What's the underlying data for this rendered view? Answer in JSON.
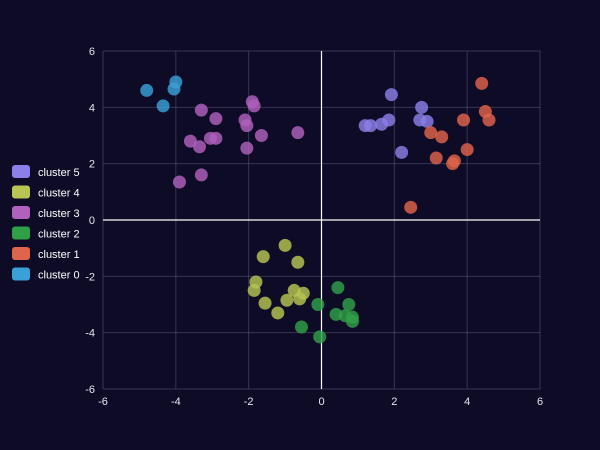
{
  "chart_data": {
    "type": "scatter",
    "title": "",
    "xlabel": "",
    "ylabel": "",
    "xlim": [
      -6,
      6
    ],
    "ylim": [
      -6,
      6
    ],
    "xticks": [
      -6,
      -4,
      -2,
      0,
      2,
      4,
      6
    ],
    "yticks": [
      -6,
      -4,
      -2,
      0,
      2,
      4,
      6
    ],
    "grid": true,
    "legend_position": "left",
    "colors": {
      "background": "#0d0b26",
      "grid": "#5a5a78",
      "axis": "#ffffff"
    },
    "series": [
      {
        "name": "cluster 5",
        "color": "#8b7fe8",
        "points": [
          [
            1.2,
            3.35
          ],
          [
            1.35,
            3.35
          ],
          [
            1.65,
            3.4
          ],
          [
            1.85,
            3.55
          ],
          [
            1.92,
            4.45
          ],
          [
            2.2,
            2.4
          ],
          [
            2.7,
            3.55
          ],
          [
            2.75,
            4.0
          ],
          [
            2.9,
            3.5
          ]
        ]
      },
      {
        "name": "cluster 4",
        "color": "#b8c552",
        "points": [
          [
            -1.6,
            -1.3
          ],
          [
            -1.0,
            -0.9
          ],
          [
            -0.65,
            -1.5
          ],
          [
            -1.8,
            -2.2
          ],
          [
            -1.85,
            -2.5
          ],
          [
            -0.75,
            -2.5
          ],
          [
            -0.5,
            -2.6
          ],
          [
            -0.95,
            -2.85
          ],
          [
            -0.6,
            -2.8
          ],
          [
            -1.55,
            -2.95
          ],
          [
            -1.2,
            -3.3
          ]
        ]
      },
      {
        "name": "cluster 3",
        "color": "#b060bd",
        "points": [
          [
            -1.9,
            4.2
          ],
          [
            -1.85,
            4.05
          ],
          [
            -3.3,
            3.9
          ],
          [
            -2.9,
            3.6
          ],
          [
            -2.1,
            3.55
          ],
          [
            -2.05,
            3.35
          ],
          [
            -1.65,
            3.0
          ],
          [
            -0.65,
            3.1
          ],
          [
            -3.6,
            2.8
          ],
          [
            -3.05,
            2.9
          ],
          [
            -2.9,
            2.9
          ],
          [
            -3.35,
            2.6
          ],
          [
            -2.05,
            2.55
          ],
          [
            -3.3,
            1.6
          ],
          [
            -3.9,
            1.35
          ]
        ]
      },
      {
        "name": "cluster 2",
        "color": "#2fa048",
        "points": [
          [
            0.45,
            -2.4
          ],
          [
            -0.1,
            -3.0
          ],
          [
            0.75,
            -3.0
          ],
          [
            0.4,
            -3.35
          ],
          [
            0.65,
            -3.4
          ],
          [
            0.85,
            -3.45
          ],
          [
            0.85,
            -3.6
          ],
          [
            -0.55,
            -3.8
          ],
          [
            -0.05,
            -4.15
          ]
        ]
      },
      {
        "name": "cluster 1",
        "color": "#e0634b",
        "points": [
          [
            4.4,
            4.85
          ],
          [
            4.5,
            3.85
          ],
          [
            4.6,
            3.55
          ],
          [
            3.9,
            3.55
          ],
          [
            3.0,
            3.1
          ],
          [
            3.3,
            2.95
          ],
          [
            4.0,
            2.5
          ],
          [
            3.15,
            2.2
          ],
          [
            3.65,
            2.1
          ],
          [
            3.6,
            2.0
          ],
          [
            2.45,
            0.45
          ]
        ]
      },
      {
        "name": "cluster 0",
        "color": "#3aa0d8",
        "points": [
          [
            -4.0,
            4.9
          ],
          [
            -4.8,
            4.6
          ],
          [
            -4.05,
            4.65
          ],
          [
            -4.35,
            4.05
          ]
        ]
      }
    ]
  }
}
